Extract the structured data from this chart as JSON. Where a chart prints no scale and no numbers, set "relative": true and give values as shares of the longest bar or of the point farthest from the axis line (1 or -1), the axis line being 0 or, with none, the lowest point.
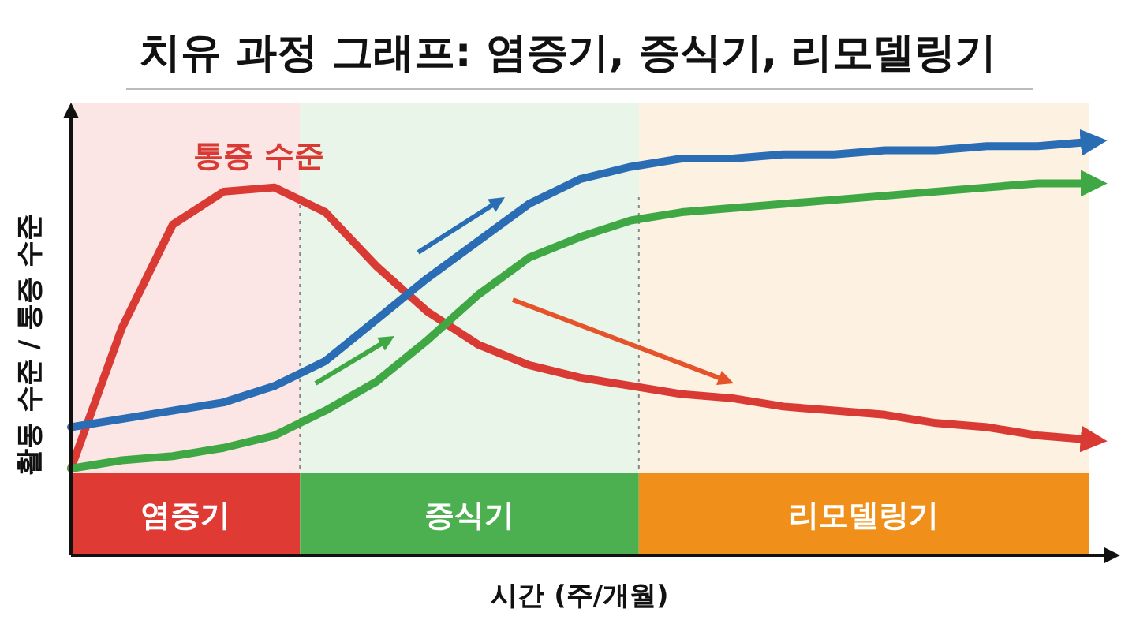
{
  "chart_data": {
    "type": "line",
    "title": "치유 과정 그래프: 염증기, 증식기, 리모델링기",
    "xlabel": "시간 (주/개월)",
    "ylabel": "활동 수준 / 통증 수준",
    "relative": true,
    "marker": "none",
    "line_style": "solid",
    "categories": [
      null,
      null,
      null,
      null,
      null,
      null,
      null,
      null,
      null,
      null,
      null,
      null,
      null,
      null,
      null,
      null,
      null,
      null,
      null,
      null,
      null
    ],
    "series": [
      {
        "name": "통증 수준",
        "color": "#d93a33",
        "values": [
          0.21,
          0.55,
          0.8,
          0.88,
          0.89,
          0.83,
          0.7,
          0.59,
          0.51,
          0.46,
          0.43,
          0.41,
          0.39,
          0.38,
          0.36,
          0.35,
          0.34,
          0.32,
          0.31,
          0.29,
          0.28
        ]
      },
      {
        "color": "#2a6db5",
        "values": [
          0.31,
          0.33,
          0.35,
          0.37,
          0.41,
          0.47,
          0.57,
          0.67,
          0.76,
          0.85,
          0.91,
          0.94,
          0.96,
          0.96,
          0.97,
          0.97,
          0.98,
          0.98,
          0.99,
          0.99,
          1
        ]
      },
      {
        "color": "#3fa845",
        "values": [
          0.21,
          0.23,
          0.24,
          0.26,
          0.29,
          0.35,
          0.42,
          0.52,
          0.63,
          0.72,
          0.77,
          0.81,
          0.83,
          0.84,
          0.85,
          0.86,
          0.87,
          0.88,
          0.89,
          0.9,
          0.9
        ]
      }
    ],
    "annotations": [
      "염증기",
      "증식기",
      "리모델링기"
    ]
  }
}
